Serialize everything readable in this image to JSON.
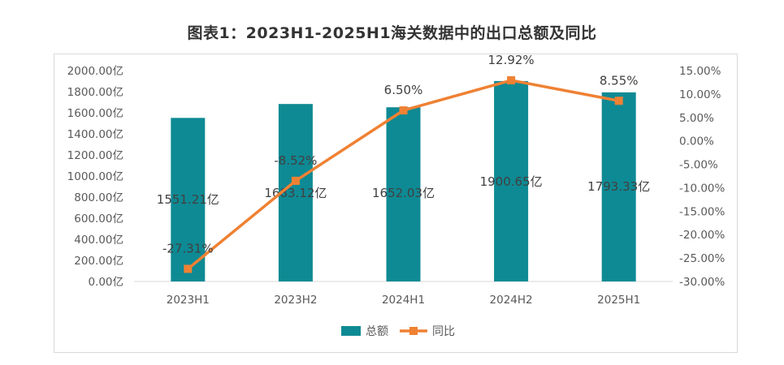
{
  "title": "图表1：2023H1-2025H1海关数据中的出口总额及同比",
  "legend": {
    "bar_label": "总额",
    "line_label": "同比"
  },
  "colors": {
    "bar": "#0e8a94",
    "line": "#ef8133"
  },
  "chart_data": {
    "type": "bar",
    "categories": [
      "2023H1",
      "2023H2",
      "2024H1",
      "2024H2",
      "2025H1"
    ],
    "series": [
      {
        "name": "总额",
        "type": "bar",
        "axis": "left",
        "values": [
          1551.21,
          1683.12,
          1652.03,
          1900.65,
          1793.33
        ],
        "labels": [
          "1551.21亿",
          "1683.12亿",
          "1652.03亿",
          "1900.65亿",
          "1793.33亿"
        ]
      },
      {
        "name": "同比",
        "type": "line",
        "axis": "right",
        "values": [
          -27.31,
          -8.52,
          6.5,
          12.92,
          8.55
        ],
        "labels": [
          "-27.31%",
          "-8.52%",
          "6.50%",
          "12.92%",
          "8.55%"
        ]
      }
    ],
    "y_left": {
      "min": 0,
      "max": 2000,
      "step": 200,
      "ticks": [
        "0.00亿",
        "200.00亿",
        "400.00亿",
        "600.00亿",
        "800.00亿",
        "1000.00亿",
        "1200.00亿",
        "1400.00亿",
        "1600.00亿",
        "1800.00亿",
        "2000.00亿"
      ]
    },
    "y_right": {
      "min": -30,
      "max": 15,
      "step": 5,
      "ticks": [
        "-30.00%",
        "-25.00%",
        "-20.00%",
        "-15.00%",
        "-10.00%",
        "-5.00%",
        "0.00%",
        "5.00%",
        "10.00%",
        "15.00%"
      ]
    },
    "grid": false,
    "legend_position": "bottom"
  }
}
